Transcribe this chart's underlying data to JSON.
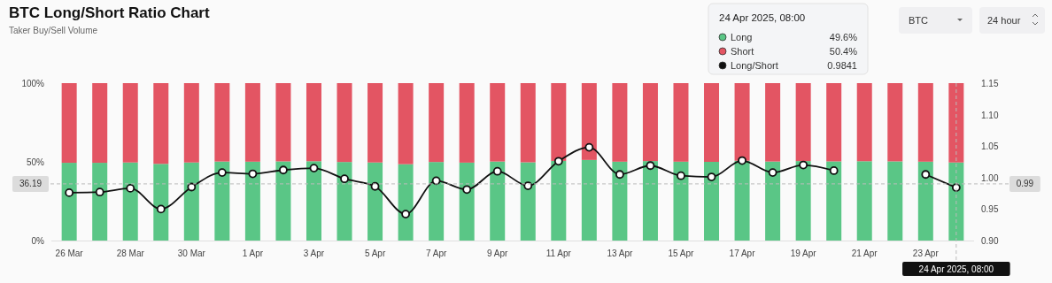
{
  "chart_data": {
    "type": "bar",
    "title": "BTC Long/Short Ratio Chart",
    "subtitle": "Taker Buy/Sell Volume",
    "x": [
      "2025-03-26",
      "2025-03-27",
      "2025-03-28",
      "2025-03-29",
      "2025-03-30",
      "2025-03-31",
      "2025-04-01",
      "2025-04-02",
      "2025-04-03",
      "2025-04-04",
      "2025-04-05",
      "2025-04-06",
      "2025-04-07",
      "2025-04-08",
      "2025-04-09",
      "2025-04-10",
      "2025-04-11",
      "2025-04-12",
      "2025-04-13",
      "2025-04-14",
      "2025-04-15",
      "2025-04-16",
      "2025-04-17",
      "2025-04-18",
      "2025-04-19",
      "2025-04-20",
      "2025-04-21",
      "2025-04-22",
      "2025-04-23",
      "2025-04-24"
    ],
    "xlim": [
      "2025-03-25T10:00",
      "2025-04-24T14:00"
    ],
    "xticks": [
      {
        "value": "2025-03-26",
        "label": "26 Mar"
      },
      {
        "value": "2025-03-28",
        "label": "28 Mar"
      },
      {
        "value": "2025-03-30",
        "label": "30 Mar"
      },
      {
        "value": "2025-04-01",
        "label": "1 Apr"
      },
      {
        "value": "2025-04-03",
        "label": "3 Apr"
      },
      {
        "value": "2025-04-05",
        "label": "5 Apr"
      },
      {
        "value": "2025-04-07",
        "label": "7 Apr"
      },
      {
        "value": "2025-04-09",
        "label": "9 Apr"
      },
      {
        "value": "2025-04-11",
        "label": "11 Apr"
      },
      {
        "value": "2025-04-13",
        "label": "13 Apr"
      },
      {
        "value": "2025-04-15",
        "label": "15 Apr"
      },
      {
        "value": "2025-04-17",
        "label": "17 Apr"
      },
      {
        "value": "2025-04-19",
        "label": "19 Apr"
      },
      {
        "value": "2025-04-21",
        "label": "21 Apr"
      },
      {
        "value": "2025-04-23",
        "label": "23 Apr"
      }
    ],
    "ylim": [
      0,
      100
    ],
    "yticks": [
      {
        "value": 0,
        "label": "0%"
      },
      {
        "value": 50,
        "label": "50%"
      },
      {
        "value": 100,
        "label": "100%"
      }
    ],
    "y2lim": [
      0.9,
      1.15
    ],
    "y2ticks": [
      {
        "value": 0.9,
        "label": "0.90"
      },
      {
        "value": 0.95,
        "label": "0.95"
      },
      {
        "value": 1.0,
        "label": "1.00"
      },
      {
        "value": 1.05,
        "label": "1.05"
      },
      {
        "value": 1.1,
        "label": "1.10"
      },
      {
        "value": 1.15,
        "label": "1.15"
      }
    ],
    "stacked": true,
    "grid": false,
    "legend": "top right",
    "marker": "circle",
    "series": [
      {
        "name": "Long",
        "color": "#5ac686",
        "values": [
          49.4,
          49.4,
          49.6,
          48.7,
          49.6,
          50.2,
          50.1,
          50.3,
          50.4,
          49.9,
          49.6,
          48.5,
          49.9,
          49.5,
          50.2,
          49.7,
          50.6,
          51.2,
          50.1,
          50.5,
          50.1,
          50.0,
          50.7,
          50.2,
          50.5,
          50.3,
          50.4,
          50.3,
          50.1,
          49.6
        ]
      },
      {
        "name": "Short",
        "color": "#e35563",
        "values": [
          50.6,
          50.6,
          50.4,
          51.3,
          50.4,
          49.8,
          49.9,
          49.7,
          49.6,
          50.1,
          50.4,
          51.5,
          50.1,
          50.5,
          49.8,
          50.3,
          49.4,
          48.8,
          49.9,
          49.5,
          49.9,
          50.0,
          49.3,
          49.8,
          49.5,
          49.7,
          49.6,
          49.7,
          49.9,
          50.4
        ]
      },
      {
        "name": "Long/Short",
        "type": "line",
        "axis": "y2",
        "color": "#111111",
        "values": [
          0.976,
          0.977,
          0.983,
          0.95,
          0.985,
          1.008,
          1.006,
          1.012,
          1.015,
          0.998,
          0.986,
          0.942,
          0.995,
          0.981,
          1.01,
          0.987,
          1.026,
          1.048,
          1.005,
          1.019,
          1.003,
          1.001,
          1.027,
          1.008,
          1.02,
          1.011,
          null,
          null,
          1.005,
          0.9841
        ]
      }
    ],
    "ref_lines": [
      {
        "axis": "y2",
        "value": 0.99,
        "label": "0.99",
        "line_style": "dashed"
      },
      {
        "axis": "x",
        "value": "2025-04-24",
        "label": "24 Apr 2025, 08:00",
        "line_style": "dashed"
      }
    ],
    "annotations": [
      "24 Apr 2025, 08:00",
      "49.6%",
      "50.4%",
      "0.9841",
      "BTC",
      "24 hour",
      "36.19"
    ]
  }
}
